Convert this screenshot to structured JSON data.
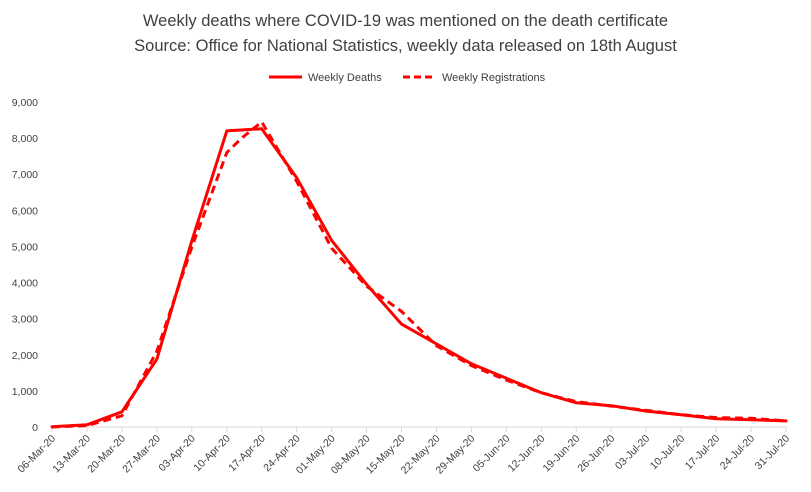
{
  "chart_data": {
    "type": "line",
    "title": "Weekly deaths where COVID-19 was mentioned on the death certificate",
    "subtitle": "Source: Office for National Statistics, weekly data released on 18th August",
    "xlabel": "",
    "ylabel": "",
    "ylim": [
      0,
      9000
    ],
    "yticks": [
      "0",
      "1,000",
      "2,000",
      "3,000",
      "4,000",
      "5,000",
      "6,000",
      "7,000",
      "8,000",
      "9,000"
    ],
    "ytick_values": [
      0,
      1000,
      2000,
      3000,
      4000,
      5000,
      6000,
      7000,
      8000,
      9000
    ],
    "grid": false,
    "legend_position": "top-center",
    "categories": [
      "06-Mar-20",
      "13-Mar-20",
      "20-Mar-20",
      "27-Mar-20",
      "03-Apr-20",
      "10-Apr-20",
      "17-Apr-20",
      "24-Apr-20",
      "01-May-20",
      "08-May-20",
      "15-May-20",
      "22-May-20",
      "29-May-20",
      "05-Jun-20",
      "12-Jun-20",
      "19-Jun-20",
      "26-Jun-20",
      "03-Jul-20",
      "10-Jul-20",
      "17-Jul-20",
      "24-Jul-20",
      "31-Jul-20"
    ],
    "series": [
      {
        "name": "Weekly Deaths",
        "style": "solid",
        "color": "#ff0000",
        "x": [
          "06-Mar-20",
          "13-Mar-20",
          "20-Mar-20",
          "27-Mar-20",
          "03-Apr-20",
          "10-Apr-20",
          "17-Apr-20",
          "24-Apr-20",
          "01-May-20",
          "08-May-20",
          "15-May-20",
          "22-May-20",
          "29-May-20",
          "05-Jun-20",
          "12-Jun-20",
          "19-Jun-20",
          "26-Jun-20",
          "03-Jul-20",
          "10-Jul-20",
          "17-Jul-20",
          "24-Jul-20",
          "31-Jul-20"
        ],
        "values": [
          5,
          60,
          420,
          1880,
          5150,
          8200,
          8260,
          6900,
          5170,
          3950,
          2850,
          2300,
          1750,
          1350,
          950,
          670,
          590,
          440,
          340,
          230,
          200,
          170
        ]
      },
      {
        "name": "Weekly Registrations",
        "style": "dashed",
        "color": "#ff0000",
        "x": [
          "06-Mar-20",
          "13-Mar-20",
          "20-Mar-20",
          "27-Mar-20",
          "03-Apr-20",
          "10-Apr-20",
          "13-Apr-20",
          "17-Apr-20",
          "24-Apr-20",
          "01-May-20",
          "08-May-20",
          "15-May-20",
          "22-May-20",
          "29-May-20",
          "05-Jun-20",
          "12-Jun-20",
          "19-Jun-20",
          "26-Jun-20",
          "03-Jul-20",
          "10-Jul-20",
          "17-Jul-20",
          "24-Jul-20",
          "31-Jul-20"
        ],
        "values": [
          0,
          40,
          310,
          2100,
          4980,
          7600,
          8000,
          8450,
          6800,
          4950,
          3900,
          3200,
          2250,
          1700,
          1300,
          950,
          700,
          580,
          460,
          340,
          260,
          240,
          170
        ]
      }
    ]
  }
}
